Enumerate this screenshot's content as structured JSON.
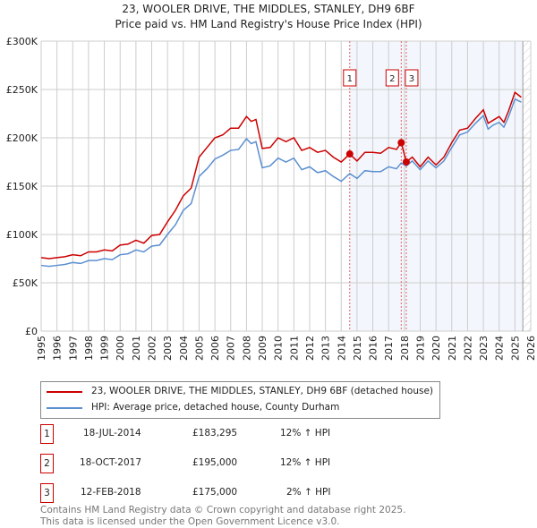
{
  "title": "23, WOOLER DRIVE, THE MIDDLES, STANLEY, DH9 6BF",
  "subtitle": "Price paid vs. HM Land Registry's House Price Index (HPI)",
  "chart_data": {
    "type": "line",
    "xlim": [
      1995,
      2026
    ],
    "ylim": [
      0,
      300000
    ],
    "xticks": [
      "1995",
      "1996",
      "1997",
      "1998",
      "1999",
      "2000",
      "2001",
      "2002",
      "2003",
      "2004",
      "2005",
      "2006",
      "2007",
      "2008",
      "2009",
      "2010",
      "2011",
      "2012",
      "2013",
      "2014",
      "2015",
      "2016",
      "2017",
      "2018",
      "2019",
      "2020",
      "2021",
      "2022",
      "2023",
      "2024",
      "2025",
      "2026"
    ],
    "yticks": [
      {
        "v": 0,
        "label": "£0"
      },
      {
        "v": 50000,
        "label": "£50K"
      },
      {
        "v": 100000,
        "label": "£100K"
      },
      {
        "v": 150000,
        "label": "£150K"
      },
      {
        "v": 200000,
        "label": "£200K"
      },
      {
        "v": 250000,
        "label": "£250K"
      },
      {
        "v": 300000,
        "label": "£300K"
      }
    ],
    "grid": true,
    "shaded_from": 2014.54,
    "hatched_from": 2025.5,
    "series": [
      {
        "name": "23, WOOLER DRIVE, THE MIDDLES, STANLEY, DH9 6BF (detached house)",
        "color": "#cc0000",
        "x": [
          1995,
          1995.5,
          1996,
          1996.5,
          1997,
          1997.5,
          1998,
          1998.5,
          1999,
          1999.5,
          2000,
          2000.5,
          2001,
          2001.5,
          2002,
          2002.5,
          2003,
          2003.5,
          2004,
          2004.5,
          2005,
          2005.5,
          2006,
          2006.5,
          2007,
          2007.5,
          2008,
          2008.3,
          2008.6,
          2009,
          2009.5,
          2010,
          2010.5,
          2011,
          2011.5,
          2012,
          2012.5,
          2013,
          2013.5,
          2014,
          2014.54,
          2015,
          2015.5,
          2016,
          2016.5,
          2017,
          2017.5,
          2017.8,
          2018.12,
          2018.5,
          2019,
          2019.5,
          2020,
          2020.5,
          2021,
          2021.5,
          2022,
          2022.5,
          2023,
          2023.3,
          2023.6,
          2024,
          2024.3,
          2024.6,
          2025,
          2025.4
        ],
        "y": [
          76000,
          75000,
          76000,
          77000,
          79000,
          78000,
          82000,
          82000,
          84000,
          83000,
          89000,
          90000,
          94000,
          91000,
          99000,
          100000,
          113000,
          125000,
          140000,
          148000,
          180000,
          190000,
          200000,
          203000,
          210000,
          210000,
          222000,
          217000,
          219000,
          189000,
          190000,
          200000,
          196000,
          200000,
          187000,
          190000,
          185000,
          187000,
          180000,
          175000,
          183295,
          176000,
          185000,
          185000,
          184000,
          190000,
          188000,
          195000,
          175000,
          180000,
          170000,
          180000,
          172000,
          180000,
          195000,
          208000,
          210000,
          220000,
          229000,
          215000,
          218000,
          222000,
          216000,
          228000,
          247000,
          242000
        ]
      },
      {
        "name": "HPI: Average price, detached house, County Durham",
        "color": "#5b8fd0",
        "x": [
          1995,
          1995.5,
          1996,
          1996.5,
          1997,
          1997.5,
          1998,
          1998.5,
          1999,
          1999.5,
          2000,
          2000.5,
          2001,
          2001.5,
          2002,
          2002.5,
          2003,
          2003.5,
          2004,
          2004.5,
          2005,
          2005.5,
          2006,
          2006.5,
          2007,
          2007.5,
          2008,
          2008.3,
          2008.6,
          2009,
          2009.5,
          2010,
          2010.5,
          2011,
          2011.5,
          2012,
          2012.5,
          2013,
          2013.5,
          2014,
          2014.54,
          2015,
          2015.5,
          2016,
          2016.5,
          2017,
          2017.5,
          2017.8,
          2018.12,
          2018.5,
          2019,
          2019.5,
          2020,
          2020.5,
          2021,
          2021.5,
          2022,
          2022.5,
          2023,
          2023.3,
          2023.6,
          2024,
          2024.3,
          2024.6,
          2025,
          2025.4
        ],
        "y": [
          68000,
          67000,
          68000,
          69000,
          71000,
          70000,
          73000,
          73000,
          75000,
          74000,
          79000,
          80000,
          84000,
          82000,
          88000,
          89000,
          100000,
          110000,
          125000,
          132000,
          160000,
          168000,
          178000,
          182000,
          187000,
          188000,
          199000,
          194000,
          196000,
          169000,
          171000,
          179000,
          175000,
          179000,
          167000,
          170000,
          164000,
          166000,
          160000,
          155000,
          163000,
          158000,
          166000,
          165000,
          165000,
          170000,
          168000,
          174000,
          171000,
          176000,
          167000,
          176000,
          169000,
          176000,
          190000,
          203000,
          206000,
          215000,
          223000,
          209000,
          213000,
          216000,
          211000,
          222000,
          240000,
          237000
        ]
      }
    ],
    "sales": [
      {
        "n": "1",
        "x": 2014.54,
        "y": 183295
      },
      {
        "n": "2",
        "x": 2017.8,
        "y": 195000
      },
      {
        "n": "3",
        "x": 2018.12,
        "y": 175000
      }
    ]
  },
  "legend": [
    "23, WOOLER DRIVE, THE MIDDLES, STANLEY, DH9 6BF (detached house)",
    "HPI: Average price, detached house, County Durham"
  ],
  "transactions": [
    {
      "n": "1",
      "date": "18-JUL-2014",
      "price": "£183,295",
      "hpi": "12% ↑ HPI"
    },
    {
      "n": "2",
      "date": "18-OCT-2017",
      "price": "£195,000",
      "hpi": "12% ↑ HPI"
    },
    {
      "n": "3",
      "date": "12-FEB-2018",
      "price": "£175,000",
      "hpi": "2% ↑ HPI"
    }
  ],
  "footer": [
    "Contains HM Land Registry data © Crown copyright and database right 2025.",
    "This data is licensed under the Open Government Licence v3.0."
  ]
}
